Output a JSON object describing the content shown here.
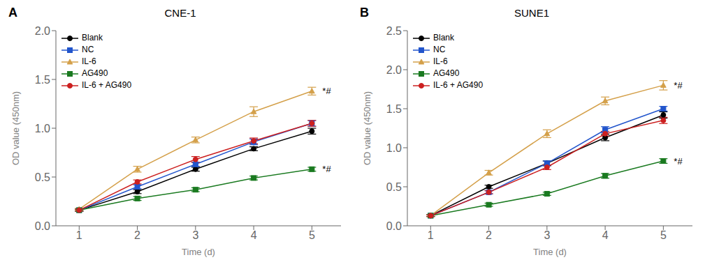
{
  "chart_data": [
    {
      "type": "line",
      "panel_label": "A",
      "title": "CNE-1",
      "x_label": "Time (d)",
      "y_label": "OD value (450nm)",
      "x": [
        1,
        2,
        3,
        4,
        5
      ],
      "xlim": [
        0.6,
        5.5
      ],
      "xticks": [
        1,
        2,
        3,
        4,
        5
      ],
      "ylim": [
        0.0,
        2.0
      ],
      "yticks": [
        {
          "value": 0.0,
          "label": "0.0"
        },
        0.5,
        {
          "value": 1.0,
          "label": "1.0"
        },
        1.5,
        {
          "value": 2.0,
          "label": "2.0"
        }
      ],
      "grid": false,
      "legend": "upper left",
      "series": [
        {
          "name": "Blank",
          "color": "#000000",
          "marker": "circle",
          "line_style": "solid",
          "values": [
            0.16,
            0.35,
            0.58,
            0.79,
            0.97
          ],
          "yerr": [
            0.01,
            0.02,
            0.02,
            0.02,
            0.03
          ]
        },
        {
          "name": "NC",
          "color": "#2255CC",
          "marker": "square",
          "line_style": "solid",
          "values": [
            0.16,
            0.4,
            0.63,
            0.86,
            1.05
          ],
          "yerr": [
            0.01,
            0.02,
            0.02,
            0.03,
            0.03
          ]
        },
        {
          "name": "IL-6",
          "color": "#D4A04A",
          "marker": "triangle",
          "line_style": "solid",
          "values": [
            0.17,
            0.58,
            0.88,
            1.17,
            1.38
          ],
          "yerr": [
            0.01,
            0.03,
            0.03,
            0.05,
            0.04
          ]
        },
        {
          "name": "AG490",
          "color": "#1A7A20",
          "marker": "square",
          "line_style": "solid",
          "values": [
            0.16,
            0.28,
            0.37,
            0.49,
            0.58
          ],
          "yerr": [
            0.01,
            0.02,
            0.02,
            0.02,
            0.02
          ]
        },
        {
          "name": "IL-6 + AG490",
          "color": "#CC2020",
          "marker": "circle",
          "line_style": "solid",
          "values": [
            0.16,
            0.45,
            0.68,
            0.87,
            1.05
          ],
          "yerr": [
            0.01,
            0.02,
            0.03,
            0.03,
            0.03
          ]
        }
      ],
      "annotations": [
        {
          "text": "*#",
          "x": 5.18,
          "y": 1.38
        },
        {
          "text": "*#",
          "x": 5.18,
          "y": 0.58
        }
      ]
    },
    {
      "type": "line",
      "panel_label": "B",
      "title": "SUNE1",
      "x_label": "Time (d)",
      "y_label": "OD value (450nm)",
      "x": [
        1,
        2,
        3,
        4,
        5
      ],
      "xlim": [
        0.6,
        5.5
      ],
      "xticks": [
        1,
        2,
        3,
        4,
        5
      ],
      "ylim": [
        0.0,
        2.5
      ],
      "yticks": [
        {
          "value": 0.0,
          "label": "0.0"
        },
        0.5,
        {
          "value": 1.0,
          "label": "1.0"
        },
        1.5,
        {
          "value": 2.0,
          "label": "2.0"
        },
        2.5
      ],
      "grid": false,
      "legend": "upper left",
      "series": [
        {
          "name": "Blank",
          "color": "#000000",
          "marker": "circle",
          "line_style": "solid",
          "values": [
            0.13,
            0.5,
            0.8,
            1.13,
            1.42
          ],
          "yerr": [
            0.01,
            0.02,
            0.03,
            0.04,
            0.04
          ]
        },
        {
          "name": "NC",
          "color": "#2255CC",
          "marker": "square",
          "line_style": "solid",
          "values": [
            0.13,
            0.43,
            0.8,
            1.23,
            1.5
          ],
          "yerr": [
            0.01,
            0.02,
            0.03,
            0.04,
            0.03
          ]
        },
        {
          "name": "IL-6",
          "color": "#D4A04A",
          "marker": "triangle",
          "line_style": "solid",
          "values": [
            0.13,
            0.68,
            1.18,
            1.6,
            1.8
          ],
          "yerr": [
            0.01,
            0.03,
            0.05,
            0.05,
            0.06
          ]
        },
        {
          "name": "AG490",
          "color": "#1A7A20",
          "marker": "square",
          "line_style": "solid",
          "values": [
            0.13,
            0.27,
            0.41,
            0.64,
            0.83
          ],
          "yerr": [
            0.01,
            0.02,
            0.02,
            0.03,
            0.03
          ]
        },
        {
          "name": "IL-6 + AG490",
          "color": "#CC2020",
          "marker": "circle",
          "line_style": "solid",
          "values": [
            0.13,
            0.43,
            0.75,
            1.18,
            1.35
          ],
          "yerr": [
            0.01,
            0.02,
            0.03,
            0.03,
            0.04
          ]
        }
      ],
      "annotations": [
        {
          "text": "*#",
          "x": 5.18,
          "y": 1.8
        },
        {
          "text": "*#",
          "x": 5.18,
          "y": 0.83
        }
      ]
    }
  ]
}
